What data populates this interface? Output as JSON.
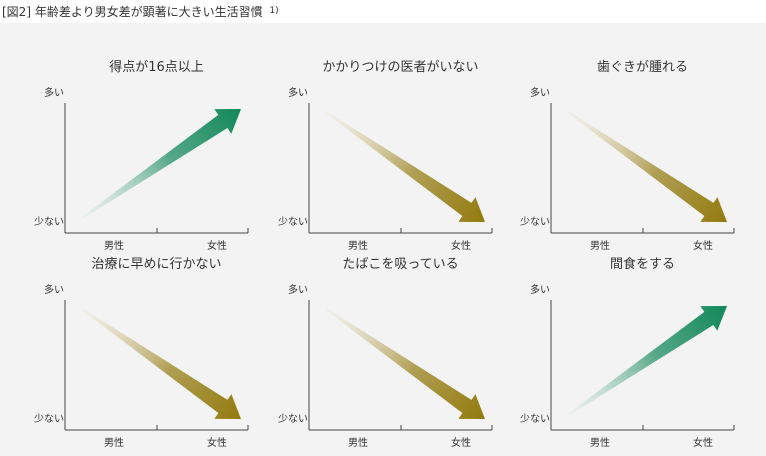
{
  "figure": {
    "label": "[図2]",
    "title": "年齢差より男女差が顕著に大きい生活習慣",
    "note": "1)"
  },
  "colors": {
    "green_light": "#cfe7df",
    "green_dark": "#12885a",
    "gold_light": "#ece5cc",
    "gold_dark": "#937a0e"
  },
  "axis": {
    "y_top": "多い",
    "y_bottom": "少ない",
    "x_left": "男性",
    "x_right": "女性"
  },
  "panels": [
    {
      "title": "得点が16点以上",
      "trend": "up",
      "color": "green"
    },
    {
      "title": "かかりつけの医者がいない",
      "trend": "down",
      "color": "gold"
    },
    {
      "title": "歯ぐきが腫れる",
      "trend": "down",
      "color": "gold"
    },
    {
      "title": "治療に早めに行かない",
      "trend": "down",
      "color": "gold"
    },
    {
      "title": "たばこを吸っている",
      "trend": "down",
      "color": "gold"
    },
    {
      "title": "間食をする",
      "trend": "up",
      "color": "green"
    }
  ]
}
